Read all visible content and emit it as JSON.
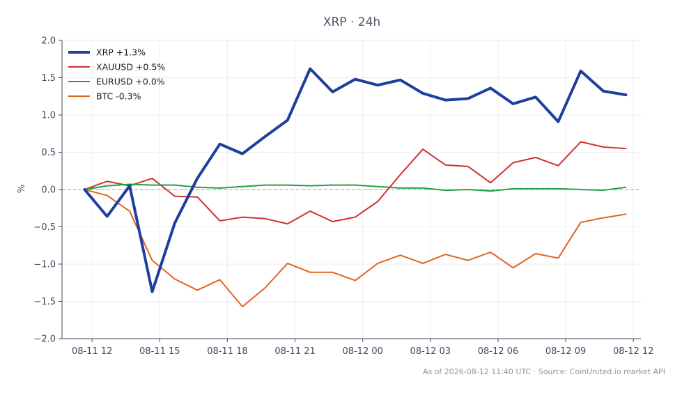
{
  "chart_data": {
    "type": "line",
    "title": "XRP · 24h",
    "xlabel": "",
    "ylabel": "%",
    "ylim": [
      -2.0,
      2.0
    ],
    "yticks": [
      -2.0,
      -1.5,
      -1.0,
      -0.5,
      0.0,
      0.5,
      1.0,
      1.5,
      2.0
    ],
    "ytick_labels": [
      "−2.0",
      "−1.5",
      "−1.0",
      "−0.5",
      "0.0",
      "0.5",
      "1.0",
      "1.5",
      "2.0"
    ],
    "xlim": [
      "2026-08-11 10:40",
      "2026-08-12 12:20"
    ],
    "xtick_values": [
      "2026-08-11 12:00",
      "2026-08-11 15:00",
      "2026-08-11 18:00",
      "2026-08-11 21:00",
      "2026-08-12 00:00",
      "2026-08-12 03:00",
      "2026-08-12 06:00",
      "2026-08-12 09:00",
      "2026-08-12 12:00"
    ],
    "xtick_labels": [
      "08-11 12",
      "08-11 15",
      "08-11 18",
      "08-11 21",
      "08-12 00",
      "08-12 03",
      "08-12 06",
      "08-12 09",
      "08-12 12"
    ],
    "x": [
      "2026-08-11 11:40",
      "2026-08-11 12:40",
      "2026-08-11 13:40",
      "2026-08-11 14:40",
      "2026-08-11 15:40",
      "2026-08-11 16:40",
      "2026-08-11 17:40",
      "2026-08-11 18:40",
      "2026-08-11 19:40",
      "2026-08-11 20:40",
      "2026-08-11 21:40",
      "2026-08-11 22:40",
      "2026-08-11 23:40",
      "2026-08-12 00:40",
      "2026-08-12 01:40",
      "2026-08-12 02:40",
      "2026-08-12 03:40",
      "2026-08-12 04:40",
      "2026-08-12 05:40",
      "2026-08-12 06:40",
      "2026-08-12 07:40",
      "2026-08-12 08:40",
      "2026-08-12 09:40",
      "2026-08-12 10:40",
      "2026-08-12 11:40"
    ],
    "grid": true,
    "legend_position": "top-left",
    "reference_line": {
      "y": 0.0,
      "style": "dashed",
      "color": "#9aa3b8"
    },
    "series": [
      {
        "name": "XRP +1.3%",
        "color": "#1f3f9c",
        "line_width": "thick",
        "values": [
          0.0,
          -0.36,
          0.05,
          -1.37,
          -0.45,
          0.15,
          0.61,
          0.48,
          0.71,
          0.93,
          1.62,
          1.31,
          1.48,
          1.4,
          1.47,
          1.29,
          1.2,
          1.22,
          1.36,
          1.15,
          1.24,
          0.91,
          1.59,
          1.32,
          1.27
        ]
      },
      {
        "name": "XAUUSD +0.5%",
        "color": "#d03030",
        "line_width": "normal",
        "values": [
          0.0,
          0.11,
          0.05,
          0.15,
          -0.09,
          -0.1,
          -0.42,
          -0.37,
          -0.39,
          -0.46,
          -0.29,
          -0.43,
          -0.37,
          -0.16,
          0.2,
          0.54,
          0.33,
          0.31,
          0.09,
          0.36,
          0.43,
          0.32,
          0.64,
          0.57,
          0.55
        ]
      },
      {
        "name": "EURUSD +0.0%",
        "color": "#22a046",
        "line_width": "normal",
        "values": [
          0.0,
          0.05,
          0.07,
          0.06,
          0.06,
          0.03,
          0.02,
          0.04,
          0.06,
          0.06,
          0.05,
          0.06,
          0.06,
          0.04,
          0.02,
          0.02,
          -0.01,
          0.0,
          -0.02,
          0.01,
          0.01,
          0.01,
          0.0,
          -0.01,
          0.03
        ]
      },
      {
        "name": "BTC -0.3%",
        "color": "#e0641e",
        "line_width": "normal",
        "values": [
          0.0,
          -0.08,
          -0.29,
          -0.95,
          -1.2,
          -1.35,
          -1.21,
          -1.57,
          -1.32,
          -0.99,
          -1.11,
          -1.11,
          -1.22,
          -0.99,
          -0.88,
          -0.99,
          -0.87,
          -0.95,
          -0.84,
          -1.05,
          -0.86,
          -0.92,
          -0.44,
          -0.38,
          -0.33
        ]
      }
    ]
  },
  "footer": {
    "source_text": "As of 2026-08-12 11:40 UTC · Source: CoinUnited.io market API"
  }
}
